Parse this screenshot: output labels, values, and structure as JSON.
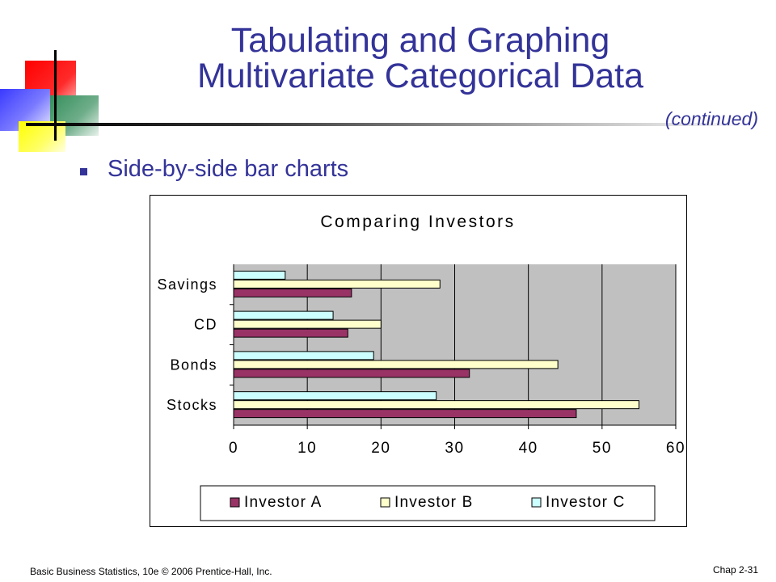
{
  "slide": {
    "title_line1": "Tabulating and Graphing",
    "title_line2": "Multivariate Categorical Data",
    "subtitle": "(continued)",
    "bullet": "Side-by-side bar charts",
    "footer_left": "Basic Business Statistics, 10e © 2006 Prentice-Hall, Inc.",
    "footer_right": "Chap 2-31"
  },
  "chart_data": {
    "type": "bar",
    "orientation": "horizontal",
    "title": "Comparing Investors",
    "categories": [
      "Savings",
      "CD",
      "Bonds",
      "Stocks"
    ],
    "series": [
      {
        "name": "Investor A",
        "values": [
          16,
          15.5,
          32,
          46.5
        ],
        "color": "#993366"
      },
      {
        "name": "Investor B",
        "values": [
          28,
          20,
          44,
          55
        ],
        "color": "#ffffcc"
      },
      {
        "name": "Investor C",
        "values": [
          7,
          13.5,
          19,
          27.5
        ],
        "color": "#ccffff"
      }
    ],
    "xlim": [
      0,
      60
    ],
    "xticks": [
      "0",
      "10",
      "20",
      "30",
      "40",
      "50",
      "60"
    ],
    "grid": true,
    "plot_background": "#c0c0c0",
    "legend_position": "bottom"
  }
}
